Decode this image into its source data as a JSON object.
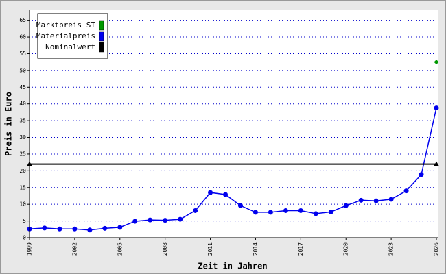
{
  "chart_data": {
    "type": "line",
    "xlabel": "Zeit in Jahren",
    "ylabel": "Preis in Euro",
    "xlim": [
      1999,
      2026
    ],
    "xticks": [
      1999,
      2002,
      2005,
      2008,
      2011,
      2014,
      2017,
      2020,
      2023,
      2026
    ],
    "ylim": [
      0,
      68
    ],
    "yticks": [
      0,
      5,
      10,
      15,
      20,
      25,
      30,
      35,
      40,
      45,
      50,
      55,
      60,
      65
    ],
    "grid": true,
    "legend": "upper left",
    "series": [
      {
        "name": "Marktpreis ST",
        "color": "#009900",
        "marker": "diamond",
        "x": [
          2026
        ],
        "values": [
          52.5
        ]
      },
      {
        "name": "Materialpreis",
        "color": "#0000ee",
        "marker": "circle",
        "x": [
          1999,
          2000,
          2001,
          2002,
          2003,
          2004,
          2005,
          2006,
          2007,
          2008,
          2009,
          2010,
          2011,
          2012,
          2013,
          2014,
          2015,
          2016,
          2017,
          2018,
          2019,
          2020,
          2021,
          2022,
          2023,
          2024,
          2025,
          2026
        ],
        "values": [
          2.6,
          2.9,
          2.6,
          2.6,
          2.3,
          2.8,
          3.1,
          4.9,
          5.3,
          5.2,
          5.5,
          8.1,
          13.5,
          12.9,
          9.6,
          7.6,
          7.6,
          8.1,
          8.1,
          7.2,
          7.7,
          9.6,
          11.2,
          11.0,
          11.5,
          14.0,
          18.9,
          38.8
        ]
      },
      {
        "name": "Nominalwert",
        "color": "#000000",
        "marker": "triangle",
        "x": [
          1999,
          2026
        ],
        "values": [
          22,
          22
        ]
      }
    ]
  }
}
